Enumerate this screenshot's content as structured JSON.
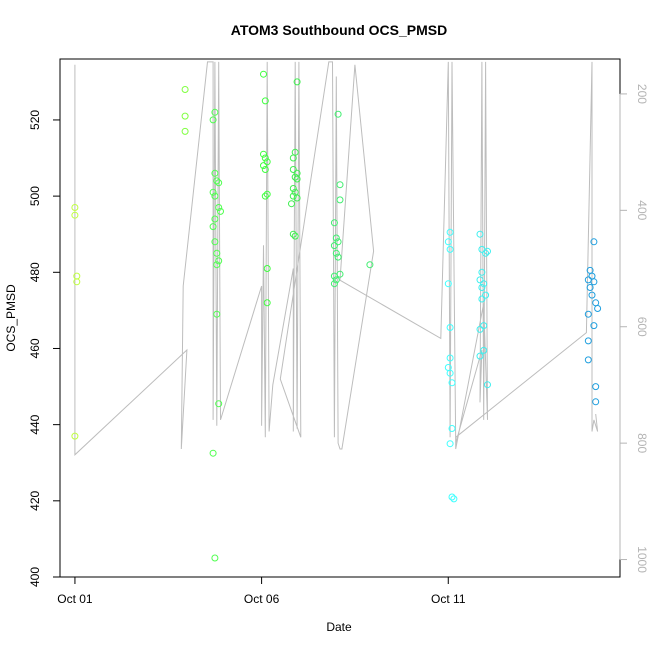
{
  "chart_data": {
    "type": "scatter",
    "title": "ATOM3 Southbound OCS_PMSD",
    "xlabel": "Date",
    "ylabel": "OCS_PMSD",
    "x_ticks": [
      "Oct 01",
      "Oct 06",
      "Oct 11"
    ],
    "x_tick_days": [
      1,
      6,
      11
    ],
    "xlim": [
      0.6,
      15.6
    ],
    "ylim": [
      400,
      536
    ],
    "y_ticks": [
      400,
      420,
      440,
      460,
      480,
      500,
      520
    ],
    "secondary_axis": {
      "label": "",
      "reversed": true,
      "ticks": [
        200,
        400,
        600,
        800,
        1000
      ],
      "lim": [
        140,
        1030
      ],
      "color": "#b4b4b4"
    },
    "grid": false,
    "legend": "none",
    "series": [
      {
        "color": "#bfff3f",
        "points": [
          [
            1.0,
            497
          ],
          [
            1.0,
            495
          ],
          [
            1.05,
            479
          ],
          [
            1.05,
            477.5
          ],
          [
            1.0,
            437
          ]
        ]
      },
      {
        "color": "#7fff3f",
        "points": [
          [
            3.95,
            528
          ],
          [
            3.95,
            521
          ],
          [
            3.95,
            517
          ]
        ]
      },
      {
        "color": "#4fff4f",
        "points": [
          [
            4.7,
            520
          ],
          [
            4.75,
            522
          ],
          [
            4.75,
            506
          ],
          [
            4.8,
            504
          ],
          [
            4.7,
            501
          ],
          [
            4.75,
            500
          ],
          [
            4.85,
            503.5
          ],
          [
            4.85,
            497
          ],
          [
            4.9,
            496
          ],
          [
            4.75,
            494
          ],
          [
            4.7,
            492
          ],
          [
            4.75,
            488
          ],
          [
            4.8,
            485
          ],
          [
            4.8,
            482
          ],
          [
            4.85,
            483
          ],
          [
            4.8,
            469
          ],
          [
            4.85,
            445.5
          ],
          [
            4.7,
            432.5
          ],
          [
            4.75,
            405
          ]
        ]
      },
      {
        "color": "#3fff3f",
        "points": [
          [
            6.05,
            532
          ],
          [
            6.1,
            525
          ],
          [
            6.05,
            511
          ],
          [
            6.1,
            510
          ],
          [
            6.05,
            508
          ],
          [
            6.1,
            507
          ],
          [
            6.15,
            509
          ],
          [
            6.1,
            500
          ],
          [
            6.15,
            500.5
          ],
          [
            6.15,
            481
          ],
          [
            6.15,
            472
          ]
        ]
      },
      {
        "color": "#3fef4f",
        "points": [
          [
            6.95,
            530
          ],
          [
            6.9,
            511.5
          ],
          [
            6.85,
            510
          ],
          [
            6.85,
            507
          ],
          [
            6.95,
            506
          ],
          [
            6.9,
            505
          ],
          [
            6.95,
            504.5
          ],
          [
            6.85,
            502
          ],
          [
            6.9,
            501
          ],
          [
            6.85,
            500
          ],
          [
            6.95,
            499.5
          ],
          [
            6.8,
            498
          ],
          [
            6.85,
            490
          ],
          [
            6.9,
            489.5
          ]
        ]
      },
      {
        "color": "#3fef6f",
        "points": [
          [
            8.05,
            521.5
          ],
          [
            7.95,
            493
          ],
          [
            8.0,
            489
          ],
          [
            8.05,
            488
          ],
          [
            7.95,
            487
          ],
          [
            8.0,
            485
          ],
          [
            8.05,
            484
          ],
          [
            8.1,
            503
          ],
          [
            8.1,
            499
          ],
          [
            7.95,
            479
          ],
          [
            8.0,
            478
          ],
          [
            7.95,
            477
          ],
          [
            8.1,
            479.5
          ],
          [
            8.9,
            482
          ]
        ]
      },
      {
        "color": "#3fffff",
        "points": [
          [
            11.05,
            490.5
          ],
          [
            11.0,
            488
          ],
          [
            11.05,
            486
          ],
          [
            11.0,
            477
          ],
          [
            11.05,
            465.5
          ],
          [
            11.05,
            457.5
          ],
          [
            11.0,
            455
          ],
          [
            11.05,
            453.5
          ],
          [
            11.1,
            451
          ],
          [
            11.1,
            439
          ],
          [
            11.05,
            435
          ],
          [
            11.1,
            421
          ],
          [
            11.15,
            420.5
          ]
        ]
      },
      {
        "color": "#3fefef",
        "points": [
          [
            11.85,
            490
          ],
          [
            11.9,
            486
          ],
          [
            12.0,
            485
          ],
          [
            12.05,
            485.5
          ],
          [
            11.9,
            480
          ],
          [
            11.85,
            478
          ],
          [
            11.9,
            476
          ],
          [
            11.95,
            477
          ],
          [
            12.0,
            474
          ],
          [
            11.9,
            473
          ],
          [
            11.95,
            466
          ],
          [
            11.85,
            465
          ],
          [
            11.95,
            459.5
          ],
          [
            11.85,
            458
          ],
          [
            12.05,
            450.5
          ]
        ]
      },
      {
        "color": "#1f9fdf",
        "points": [
          [
            14.9,
            488
          ],
          [
            14.8,
            480.5
          ],
          [
            14.85,
            479
          ],
          [
            14.75,
            478
          ],
          [
            14.8,
            476
          ],
          [
            14.9,
            477.5
          ],
          [
            14.85,
            474
          ],
          [
            14.95,
            472
          ],
          [
            15.0,
            470.5
          ],
          [
            14.75,
            469
          ],
          [
            14.9,
            466
          ],
          [
            14.75,
            462
          ],
          [
            14.75,
            457
          ],
          [
            14.95,
            450
          ],
          [
            14.95,
            446
          ]
        ]
      }
    ],
    "pressure_series": {
      "color": "#bdbdbd",
      "points": [
        [
          1.0,
          150
        ],
        [
          1.0,
          820
        ],
        [
          4.0,
          640
        ],
        [
          3.85,
          810
        ],
        [
          3.9,
          530
        ],
        [
          4.55,
          145
        ],
        [
          4.7,
          145
        ],
        [
          4.7,
          760
        ],
        [
          4.75,
          145
        ],
        [
          4.8,
          770
        ],
        [
          4.85,
          145
        ],
        [
          4.9,
          760
        ],
        [
          6.0,
          530
        ],
        [
          6.0,
          770
        ],
        [
          6.05,
          460
        ],
        [
          6.1,
          790
        ],
        [
          6.15,
          145
        ],
        [
          6.2,
          780
        ],
        [
          6.3,
          700
        ],
        [
          6.85,
          500
        ],
        [
          6.85,
          780
        ],
        [
          6.9,
          145
        ],
        [
          6.95,
          775
        ],
        [
          7.0,
          145
        ],
        [
          7.05,
          790
        ],
        [
          6.5,
          690
        ],
        [
          7.8,
          145
        ],
        [
          7.9,
          145
        ],
        [
          7.95,
          790
        ],
        [
          8.0,
          170
        ],
        [
          8.05,
          800
        ],
        [
          8.1,
          810
        ],
        [
          8.15,
          810
        ],
        [
          9.0,
          470
        ],
        [
          8.5,
          150
        ],
        [
          8.1,
          520
        ],
        [
          10.8,
          620
        ],
        [
          11.0,
          145
        ],
        [
          11.05,
          790
        ],
        [
          11.1,
          145
        ],
        [
          11.2,
          800
        ],
        [
          11.9,
          640
        ],
        [
          11.85,
          730
        ],
        [
          11.9,
          145
        ],
        [
          11.95,
          760
        ],
        [
          12.0,
          145
        ],
        [
          12.05,
          760
        ],
        [
          11.95,
          560
        ],
        [
          11.2,
          810
        ],
        [
          11.2,
          790
        ],
        [
          14.7,
          610
        ],
        [
          14.85,
          145
        ],
        [
          14.85,
          780
        ],
        [
          14.9,
          760
        ],
        [
          15.0,
          780
        ],
        [
          14.95,
          750
        ]
      ]
    }
  }
}
